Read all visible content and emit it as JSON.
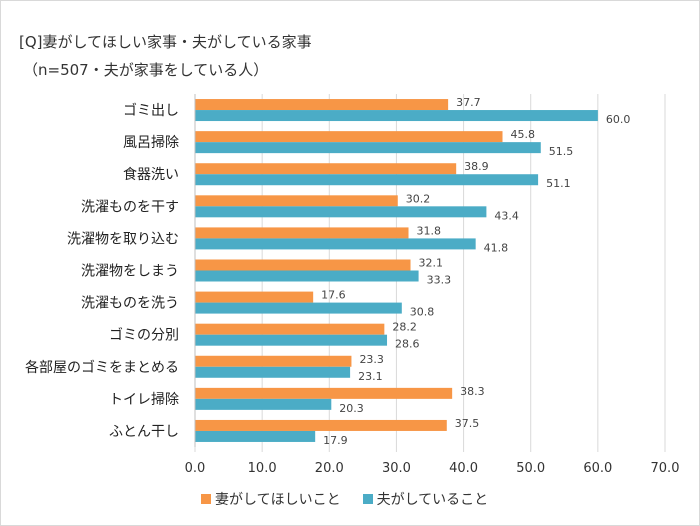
{
  "chart_data": {
    "type": "bar",
    "orientation": "horizontal",
    "title": "[Q]妻がしてほしい家事・夫がしている家事",
    "subtitle": "（n=507・夫が家事をしている人）",
    "categories": [
      "ゴミ出し",
      "風呂掃除",
      "食器洗い",
      "洗濯ものを干す",
      "洗濯物を取り込む",
      "洗濯物をしまう",
      "洗濯ものを洗う",
      "ゴミの分別",
      "各部屋のゴミをまとめる",
      "トイレ掃除",
      "ふとん干し"
    ],
    "series": [
      {
        "name": "妻がしてほしいこと",
        "color": "#f79646",
        "values": [
          37.7,
          45.8,
          38.9,
          30.2,
          31.8,
          32.1,
          17.6,
          28.2,
          23.3,
          38.3,
          37.5
        ]
      },
      {
        "name": "夫がしていること",
        "color": "#4bacc6",
        "values": [
          60.0,
          51.5,
          51.1,
          43.4,
          41.8,
          33.3,
          30.8,
          28.6,
          23.1,
          20.3,
          17.9
        ]
      }
    ],
    "xlim": [
      0,
      70
    ],
    "xticks": [
      "0.0",
      "10.0",
      "20.0",
      "30.0",
      "40.0",
      "50.0",
      "60.0",
      "70.0"
    ],
    "grid": true,
    "legend_position": "bottom"
  }
}
